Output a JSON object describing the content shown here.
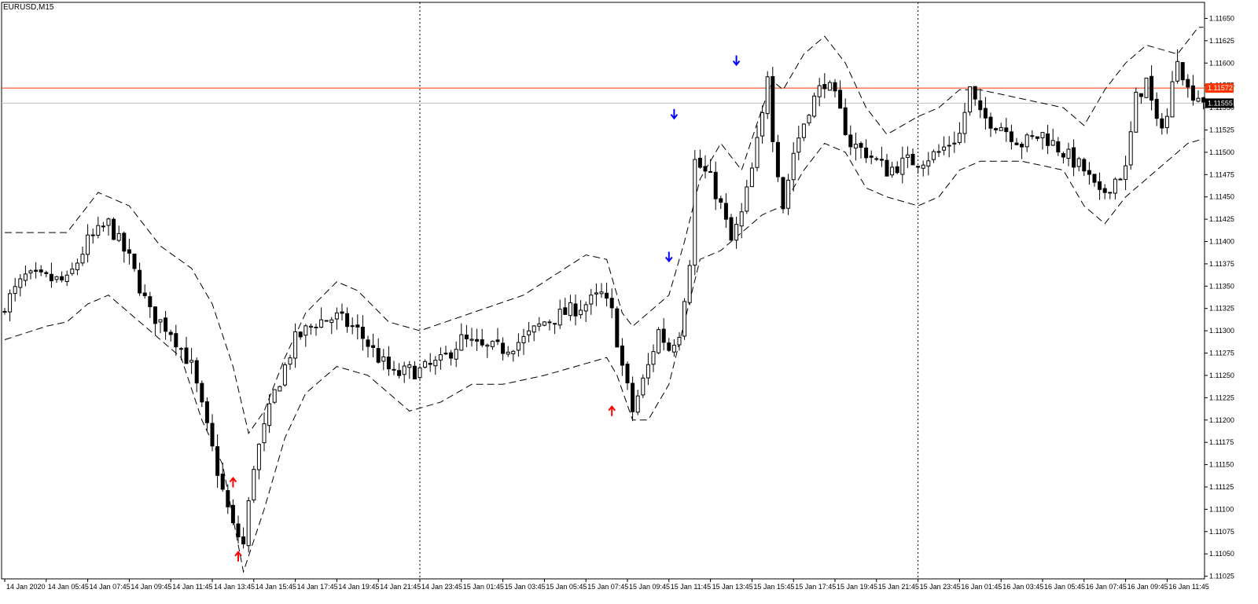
{
  "window": {
    "symbol_label": "EURUSD,M15"
  },
  "colors": {
    "background": "#ffffff",
    "candle": "#000000",
    "band": "#000000",
    "bid_line": "#ff3300",
    "ask_line": "#c0c0c0",
    "buy_arrow": "#ff0000",
    "sell_arrow": "#0000ff",
    "bid_box": "#ff3300",
    "ask_box": "#000000"
  },
  "price_labels": {
    "bid": "1.11572",
    "ask": "1.11555"
  },
  "chart_data": {
    "type": "candlestick",
    "title": "EURUSD,M15",
    "y_axis": {
      "ylim": [
        1.11022,
        1.11668
      ],
      "ticks": [
        "1.11650",
        "1.11625",
        "1.11600",
        "1.11575",
        "1.11550",
        "1.11525",
        "1.11500",
        "1.11475",
        "1.11450",
        "1.11425",
        "1.11400",
        "1.11375",
        "1.11350",
        "1.11325",
        "1.11300",
        "1.11275",
        "1.11250",
        "1.11225",
        "1.11200",
        "1.11175",
        "1.11150",
        "1.11125",
        "1.11100",
        "1.11075",
        "1.11050",
        "1.11025"
      ]
    },
    "x_axis": {
      "ticks": [
        {
          "label": "14 Jan 2020",
          "bar": 0
        },
        {
          "label": "14 Jan 05:45",
          "bar": 8
        },
        {
          "label": "14 Jan 07:45",
          "bar": 16
        },
        {
          "label": "14 Jan 09:45",
          "bar": 24
        },
        {
          "label": "14 Jan 11:45",
          "bar": 32
        },
        {
          "label": "14 Jan 13:45",
          "bar": 40
        },
        {
          "label": "14 Jan 15:45",
          "bar": 48
        },
        {
          "label": "14 Jan 17:45",
          "bar": 56
        },
        {
          "label": "14 Jan 19:45",
          "bar": 64
        },
        {
          "label": "14 Jan 21:45",
          "bar": 72
        },
        {
          "label": "14 Jan 23:45",
          "bar": 80
        },
        {
          "label": "15 Jan 01:45",
          "bar": 88
        },
        {
          "label": "15 Jan 03:45",
          "bar": 96
        },
        {
          "label": "15 Jan 05:45",
          "bar": 104
        },
        {
          "label": "15 Jan 07:45",
          "bar": 112
        },
        {
          "label": "15 Jan 09:45",
          "bar": 120
        },
        {
          "label": "15 Jan 11:45",
          "bar": 128
        },
        {
          "label": "15 Jan 13:45",
          "bar": 136
        },
        {
          "label": "15 Jan 15:45",
          "bar": 144
        },
        {
          "label": "15 Jan 17:45",
          "bar": 152
        },
        {
          "label": "15 Jan 19:45",
          "bar": 160
        },
        {
          "label": "15 Jan 21:45",
          "bar": 168
        },
        {
          "label": "15 Jan 23:45",
          "bar": 176
        },
        {
          "label": "16 Jan 01:45",
          "bar": 184
        },
        {
          "label": "16 Jan 03:45",
          "bar": 192
        },
        {
          "label": "16 Jan 05:45",
          "bar": 200
        },
        {
          "label": "16 Jan 07:45",
          "bar": 208
        },
        {
          "label": "16 Jan 09:45",
          "bar": 216
        },
        {
          "label": "16 Jan 11:45",
          "bar": 224
        }
      ]
    },
    "day_separators": [
      80,
      176
    ],
    "horizontal_lines": [
      {
        "price": 1.11572,
        "kind": "bid"
      },
      {
        "price": 1.11555,
        "kind": "ask"
      }
    ],
    "close_anchors": [
      [
        0,
        1.1133
      ],
      [
        4,
        1.1136
      ],
      [
        8,
        1.11358
      ],
      [
        12,
        1.11355
      ],
      [
        16,
        1.114
      ],
      [
        20,
        1.1142
      ],
      [
        24,
        1.1138
      ],
      [
        28,
        1.1132
      ],
      [
        32,
        1.113
      ],
      [
        36,
        1.1126
      ],
      [
        39,
        1.1119
      ],
      [
        42,
        1.1112
      ],
      [
        44,
        1.1108
      ],
      [
        46,
        1.1106
      ],
      [
        48,
        1.1115
      ],
      [
        52,
        1.1123
      ],
      [
        56,
        1.1129
      ],
      [
        60,
        1.1131
      ],
      [
        64,
        1.11315
      ],
      [
        68,
        1.113
      ],
      [
        72,
        1.1127
      ],
      [
        75,
        1.1125
      ],
      [
        78,
        1.11255
      ],
      [
        80,
        1.11255
      ],
      [
        84,
        1.11265
      ],
      [
        88,
        1.1129
      ],
      [
        92,
        1.1128
      ],
      [
        96,
        1.1128
      ],
      [
        100,
        1.1129
      ],
      [
        104,
        1.1131
      ],
      [
        108,
        1.1132
      ],
      [
        112,
        1.1133
      ],
      [
        115,
        1.1134
      ],
      [
        117,
        1.1132
      ],
      [
        119,
        1.1126
      ],
      [
        121,
        1.1121
      ],
      [
        124,
        1.1126
      ],
      [
        126,
        1.113
      ],
      [
        128,
        1.1128
      ],
      [
        130,
        1.113
      ],
      [
        132,
        1.1138
      ],
      [
        133,
        1.1149
      ],
      [
        136,
        1.1147
      ],
      [
        138,
        1.1144
      ],
      [
        140,
        1.114
      ],
      [
        142,
        1.1143
      ],
      [
        144,
        1.1148
      ],
      [
        146,
        1.1154
      ],
      [
        147,
        1.1159
      ],
      [
        148,
        1.1152
      ],
      [
        150,
        1.1144
      ],
      [
        152,
        1.115
      ],
      [
        155,
        1.1155
      ],
      [
        158,
        1.1158
      ],
      [
        160,
        1.1156
      ],
      [
        163,
        1.1151
      ],
      [
        166,
        1.115
      ],
      [
        170,
        1.1148
      ],
      [
        174,
        1.1149
      ],
      [
        176,
        1.1149
      ],
      [
        180,
        1.115
      ],
      [
        184,
        1.1152
      ],
      [
        186,
        1.1157
      ],
      [
        188,
        1.1154
      ],
      [
        192,
        1.1153
      ],
      [
        196,
        1.1151
      ],
      [
        200,
        1.1152
      ],
      [
        204,
        1.115
      ],
      [
        208,
        1.1148
      ],
      [
        211,
        1.1145
      ],
      [
        214,
        1.1147
      ],
      [
        216,
        1.1148
      ],
      [
        218,
        1.1156
      ],
      [
        220,
        1.1158
      ],
      [
        222,
        1.1153
      ],
      [
        224,
        1.1154
      ],
      [
        226,
        1.1161
      ],
      [
        228,
        1.1157
      ],
      [
        231,
        1.1156
      ]
    ],
    "bands": {
      "upper_anchors": [
        [
          0,
          1.1141
        ],
        [
          12,
          1.1141
        ],
        [
          18,
          1.11455
        ],
        [
          24,
          1.1144
        ],
        [
          30,
          1.11395
        ],
        [
          36,
          1.1137
        ],
        [
          40,
          1.1133
        ],
        [
          44,
          1.1126
        ],
        [
          47,
          1.11185
        ],
        [
          50,
          1.1121
        ],
        [
          54,
          1.1127
        ],
        [
          58,
          1.1132
        ],
        [
          64,
          1.11355
        ],
        [
          68,
          1.11345
        ],
        [
          74,
          1.1131
        ],
        [
          80,
          1.113
        ],
        [
          90,
          1.1132
        ],
        [
          100,
          1.1134
        ],
        [
          108,
          1.1137
        ],
        [
          112,
          1.11385
        ],
        [
          116,
          1.1138
        ],
        [
          119,
          1.1132
        ],
        [
          121,
          1.11305
        ],
        [
          124,
          1.1132
        ],
        [
          128,
          1.1134
        ],
        [
          131,
          1.114
        ],
        [
          134,
          1.1147
        ],
        [
          138,
          1.1151
        ],
        [
          142,
          1.1148
        ],
        [
          146,
          1.1155
        ],
        [
          148,
          1.1158
        ],
        [
          150,
          1.1157
        ],
        [
          154,
          1.1161
        ],
        [
          158,
          1.1163
        ],
        [
          162,
          1.116
        ],
        [
          166,
          1.1155
        ],
        [
          170,
          1.1152
        ],
        [
          176,
          1.1154
        ],
        [
          180,
          1.1155
        ],
        [
          184,
          1.1157
        ],
        [
          188,
          1.1157
        ],
        [
          196,
          1.1156
        ],
        [
          204,
          1.1155
        ],
        [
          208,
          1.1153
        ],
        [
          212,
          1.1157
        ],
        [
          216,
          1.116
        ],
        [
          220,
          1.1162
        ],
        [
          226,
          1.1161
        ],
        [
          230,
          1.1164
        ]
      ],
      "lower_anchors": [
        [
          0,
          1.1129
        ],
        [
          8,
          1.11305
        ],
        [
          12,
          1.1131
        ],
        [
          16,
          1.1133
        ],
        [
          20,
          1.1134
        ],
        [
          26,
          1.1131
        ],
        [
          30,
          1.1129
        ],
        [
          34,
          1.1127
        ],
        [
          38,
          1.112
        ],
        [
          42,
          1.1115
        ],
        [
          46,
          1.1103
        ],
        [
          50,
          1.111
        ],
        [
          54,
          1.1118
        ],
        [
          58,
          1.1123
        ],
        [
          64,
          1.1126
        ],
        [
          70,
          1.1125
        ],
        [
          74,
          1.1123
        ],
        [
          78,
          1.1121
        ],
        [
          84,
          1.1122
        ],
        [
          90,
          1.1124
        ],
        [
          96,
          1.1124
        ],
        [
          104,
          1.1125
        ],
        [
          110,
          1.1126
        ],
        [
          116,
          1.1127
        ],
        [
          118,
          1.1125
        ],
        [
          121,
          1.112
        ],
        [
          124,
          1.112
        ],
        [
          128,
          1.1124
        ],
        [
          131,
          1.1131
        ],
        [
          134,
          1.1138
        ],
        [
          138,
          1.1139
        ],
        [
          142,
          1.1141
        ],
        [
          146,
          1.1143
        ],
        [
          150,
          1.1144
        ],
        [
          154,
          1.1148
        ],
        [
          158,
          1.1151
        ],
        [
          162,
          1.115
        ],
        [
          166,
          1.1146
        ],
        [
          170,
          1.1145
        ],
        [
          176,
          1.1144
        ],
        [
          180,
          1.1145
        ],
        [
          184,
          1.1148
        ],
        [
          188,
          1.1149
        ],
        [
          196,
          1.1149
        ],
        [
          204,
          1.1148
        ],
        [
          208,
          1.1144
        ],
        [
          212,
          1.1142
        ],
        [
          216,
          1.1145
        ],
        [
          222,
          1.1148
        ],
        [
          228,
          1.1151
        ],
        [
          231,
          1.11515
        ]
      ]
    },
    "signals": [
      {
        "bar": 44,
        "side": "buy",
        "price": 1.11128
      },
      {
        "bar": 45,
        "side": "buy",
        "price": 1.11045
      },
      {
        "bar": 117,
        "side": "buy",
        "price": 1.11208
      },
      {
        "bar": 128,
        "side": "sell",
        "price": 1.11385
      },
      {
        "bar": 129,
        "side": "sell",
        "price": 1.11545
      },
      {
        "bar": 141,
        "side": "sell",
        "price": 1.11605
      }
    ]
  }
}
